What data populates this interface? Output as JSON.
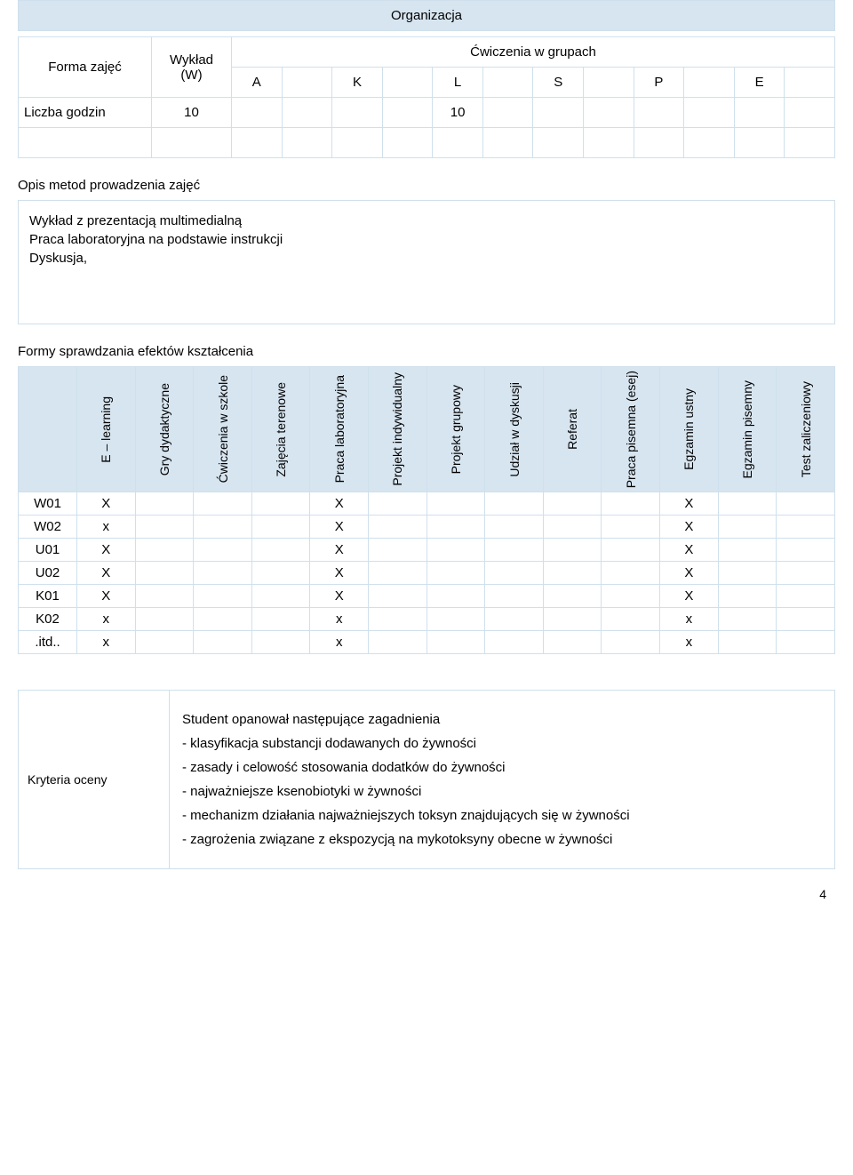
{
  "org": {
    "header": "Organizacja",
    "forma_label": "Forma zajęć",
    "wyklad_label_line1": "Wykład",
    "wyklad_label_line2": "(W)",
    "cwiczenia_header": "Ćwiczenia w grupach",
    "cols": [
      "A",
      "K",
      "L",
      "S",
      "P",
      "E"
    ],
    "liczba_label": "Liczba godzin",
    "liczba_wyklad": "10",
    "liczba_L": "10"
  },
  "metody": {
    "title": "Opis metod prowadzenia zajęć",
    "lines": [
      "Wykład z prezentacją multimedialną",
      "Praca laboratoryjna na podstawie instrukcji",
      "Dyskusja,"
    ]
  },
  "formy": {
    "title": "Formy sprawdzania efektów kształcenia",
    "columns": [
      "E – learning",
      "Gry dydaktyczne",
      "Ćwiczenia w szkole",
      "Zajęcia terenowe",
      "Praca laboratoryjna",
      "Projekt indywidualny",
      "Projekt grupowy",
      "Udział w dyskusji",
      "Referat",
      "Praca pisemna (esej)",
      "Egzamin ustny",
      "Egzamin pisemny",
      "Test zaliczeniowy"
    ],
    "rows": [
      {
        "code": "W01",
        "cells": [
          "X",
          "",
          "",
          "",
          "X",
          "",
          "",
          "",
          "",
          "",
          "X",
          "",
          ""
        ]
      },
      {
        "code": "W02",
        "cells": [
          "x",
          "",
          "",
          "",
          "X",
          "",
          "",
          "",
          "",
          "",
          "X",
          "",
          ""
        ]
      },
      {
        "code": "U01",
        "cells": [
          "X",
          "",
          "",
          "",
          "X",
          "",
          "",
          "",
          "",
          "",
          "X",
          "",
          ""
        ]
      },
      {
        "code": "U02",
        "cells": [
          "X",
          "",
          "",
          "",
          "X",
          "",
          "",
          "",
          "",
          "",
          "X",
          "",
          ""
        ]
      },
      {
        "code": "K01",
        "cells": [
          "X",
          "",
          "",
          "",
          "X",
          "",
          "",
          "",
          "",
          "",
          "X",
          "",
          ""
        ]
      },
      {
        "code": "K02",
        "cells": [
          "x",
          "",
          "",
          "",
          "x",
          "",
          "",
          "",
          "",
          "",
          "x",
          "",
          ""
        ]
      },
      {
        "code": ".itd..",
        "cells": [
          "x",
          "",
          "",
          "",
          "x",
          "",
          "",
          "",
          "",
          "",
          "x",
          "",
          ""
        ]
      }
    ]
  },
  "kryteria": {
    "label": "Kryteria oceny",
    "intro": "Student opanował następujące zagadnienia",
    "bullets": [
      "- klasyfikacja substancji dodawanych do żywności",
      "- zasady i celowość stosowania dodatków do żywności",
      "- najważniejsze ksenobiotyki w żywności",
      "- mechanizm działania najważniejszych toksyn znajdujących się w żywności",
      "- zagrożenia związane z ekspozycją na mykotoksyny obecne w żywności"
    ]
  },
  "page_number": "4",
  "colors": {
    "header_bg": "#d7e5f0",
    "border": "#cfe0ec"
  }
}
